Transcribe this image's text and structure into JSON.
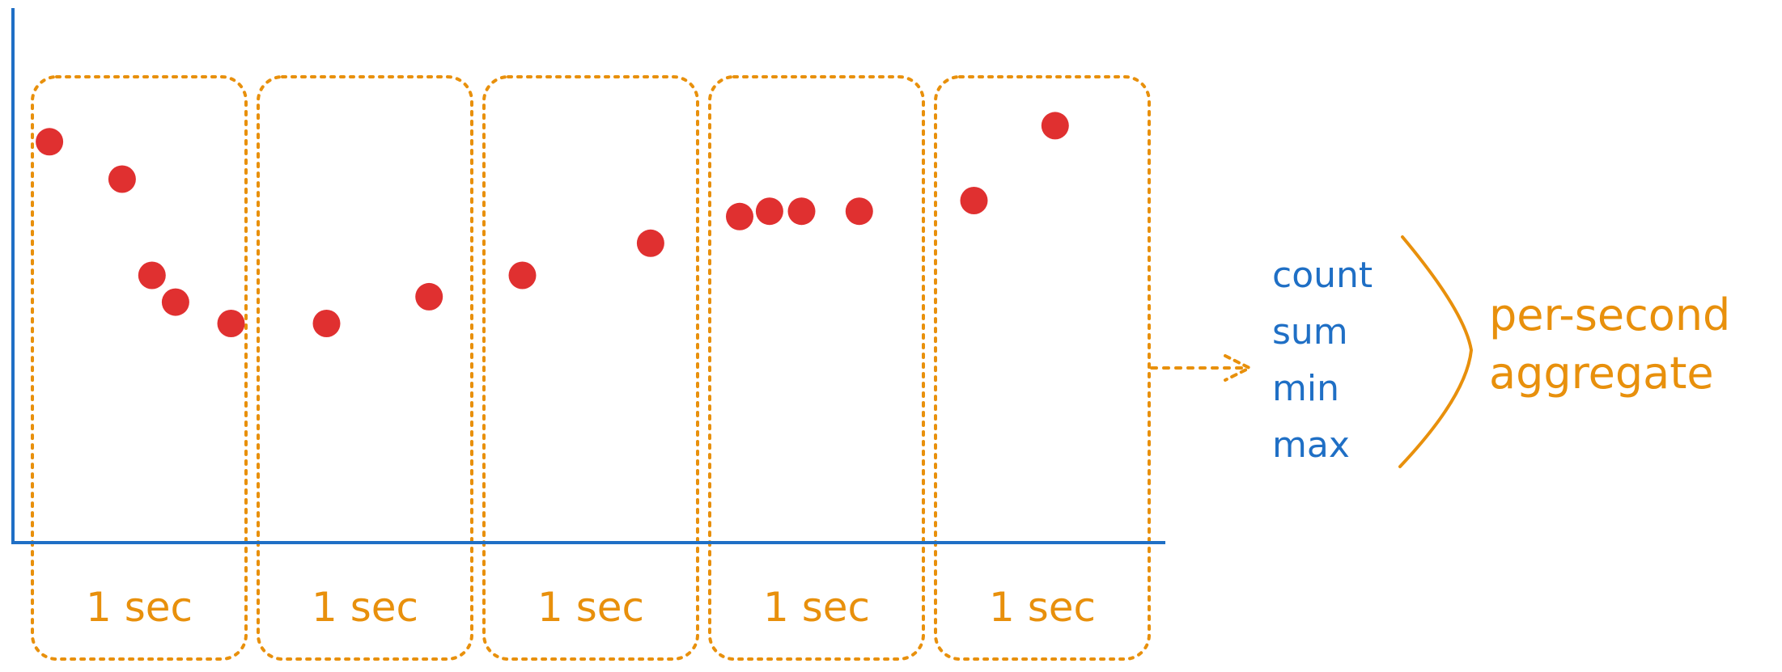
{
  "colors": {
    "axis": "#1f6fc5",
    "window": "#e8900c",
    "point": "#e03030",
    "metric_text": "#1f6fc5",
    "result_text": "#e8900c"
  },
  "windows": [
    {
      "label": "1 sec"
    },
    {
      "label": "1 sec"
    },
    {
      "label": "1 sec"
    },
    {
      "label": "1 sec"
    },
    {
      "label": "1 sec"
    }
  ],
  "points": [
    {
      "window": 1,
      "t": 0.08,
      "v": 0.75
    },
    {
      "window": 1,
      "t": 0.42,
      "v": 0.68
    },
    {
      "window": 1,
      "t": 0.56,
      "v": 0.5
    },
    {
      "window": 1,
      "t": 0.67,
      "v": 0.45
    },
    {
      "window": 1,
      "t": 0.93,
      "v": 0.41
    },
    {
      "window": 2,
      "t": 0.32,
      "v": 0.41
    },
    {
      "window": 2,
      "t": 0.8,
      "v": 0.46
    },
    {
      "window": 3,
      "t": 0.18,
      "v": 0.5
    },
    {
      "window": 3,
      "t": 0.78,
      "v": 0.56
    },
    {
      "window": 4,
      "t": 0.14,
      "v": 0.61
    },
    {
      "window": 4,
      "t": 0.28,
      "v": 0.62
    },
    {
      "window": 4,
      "t": 0.43,
      "v": 0.62
    },
    {
      "window": 4,
      "t": 0.7,
      "v": 0.62
    },
    {
      "window": 5,
      "t": 0.18,
      "v": 0.64
    },
    {
      "window": 5,
      "t": 0.56,
      "v": 0.78
    }
  ],
  "metrics": [
    "count",
    "sum",
    "min",
    "max"
  ],
  "result": {
    "line1": "per-second",
    "line2": "aggregate"
  }
}
